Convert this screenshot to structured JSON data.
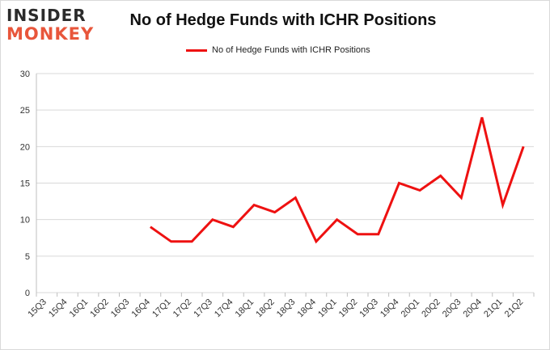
{
  "logo": {
    "line1": "INSIDER",
    "line2": "MONKEY"
  },
  "chart_data": {
    "type": "line",
    "title": "No of Hedge Funds with ICHR Positions",
    "categories": [
      "15Q3",
      "15Q4",
      "16Q1",
      "16Q2",
      "16Q3",
      "16Q4",
      "17Q1",
      "17Q2",
      "17Q3",
      "17Q4",
      "18Q1",
      "18Q2",
      "18Q3",
      "18Q4",
      "19Q1",
      "19Q2",
      "19Q3",
      "19Q4",
      "20Q1",
      "20Q2",
      "20Q3",
      "20Q4",
      "21Q1",
      "21Q2"
    ],
    "series": [
      {
        "name": "No of Hedge Funds with ICHR Positions",
        "color": "#ee1111",
        "values": [
          null,
          null,
          null,
          null,
          null,
          9,
          7,
          7,
          10,
          9,
          12,
          11,
          13,
          7,
          10,
          8,
          8,
          15,
          14,
          16,
          13,
          24,
          12,
          20
        ]
      }
    ],
    "ylim": [
      0,
      30
    ],
    "yticks": [
      0,
      5,
      10,
      15,
      20,
      25,
      30
    ],
    "grid": true,
    "legend_position": "top-center"
  }
}
